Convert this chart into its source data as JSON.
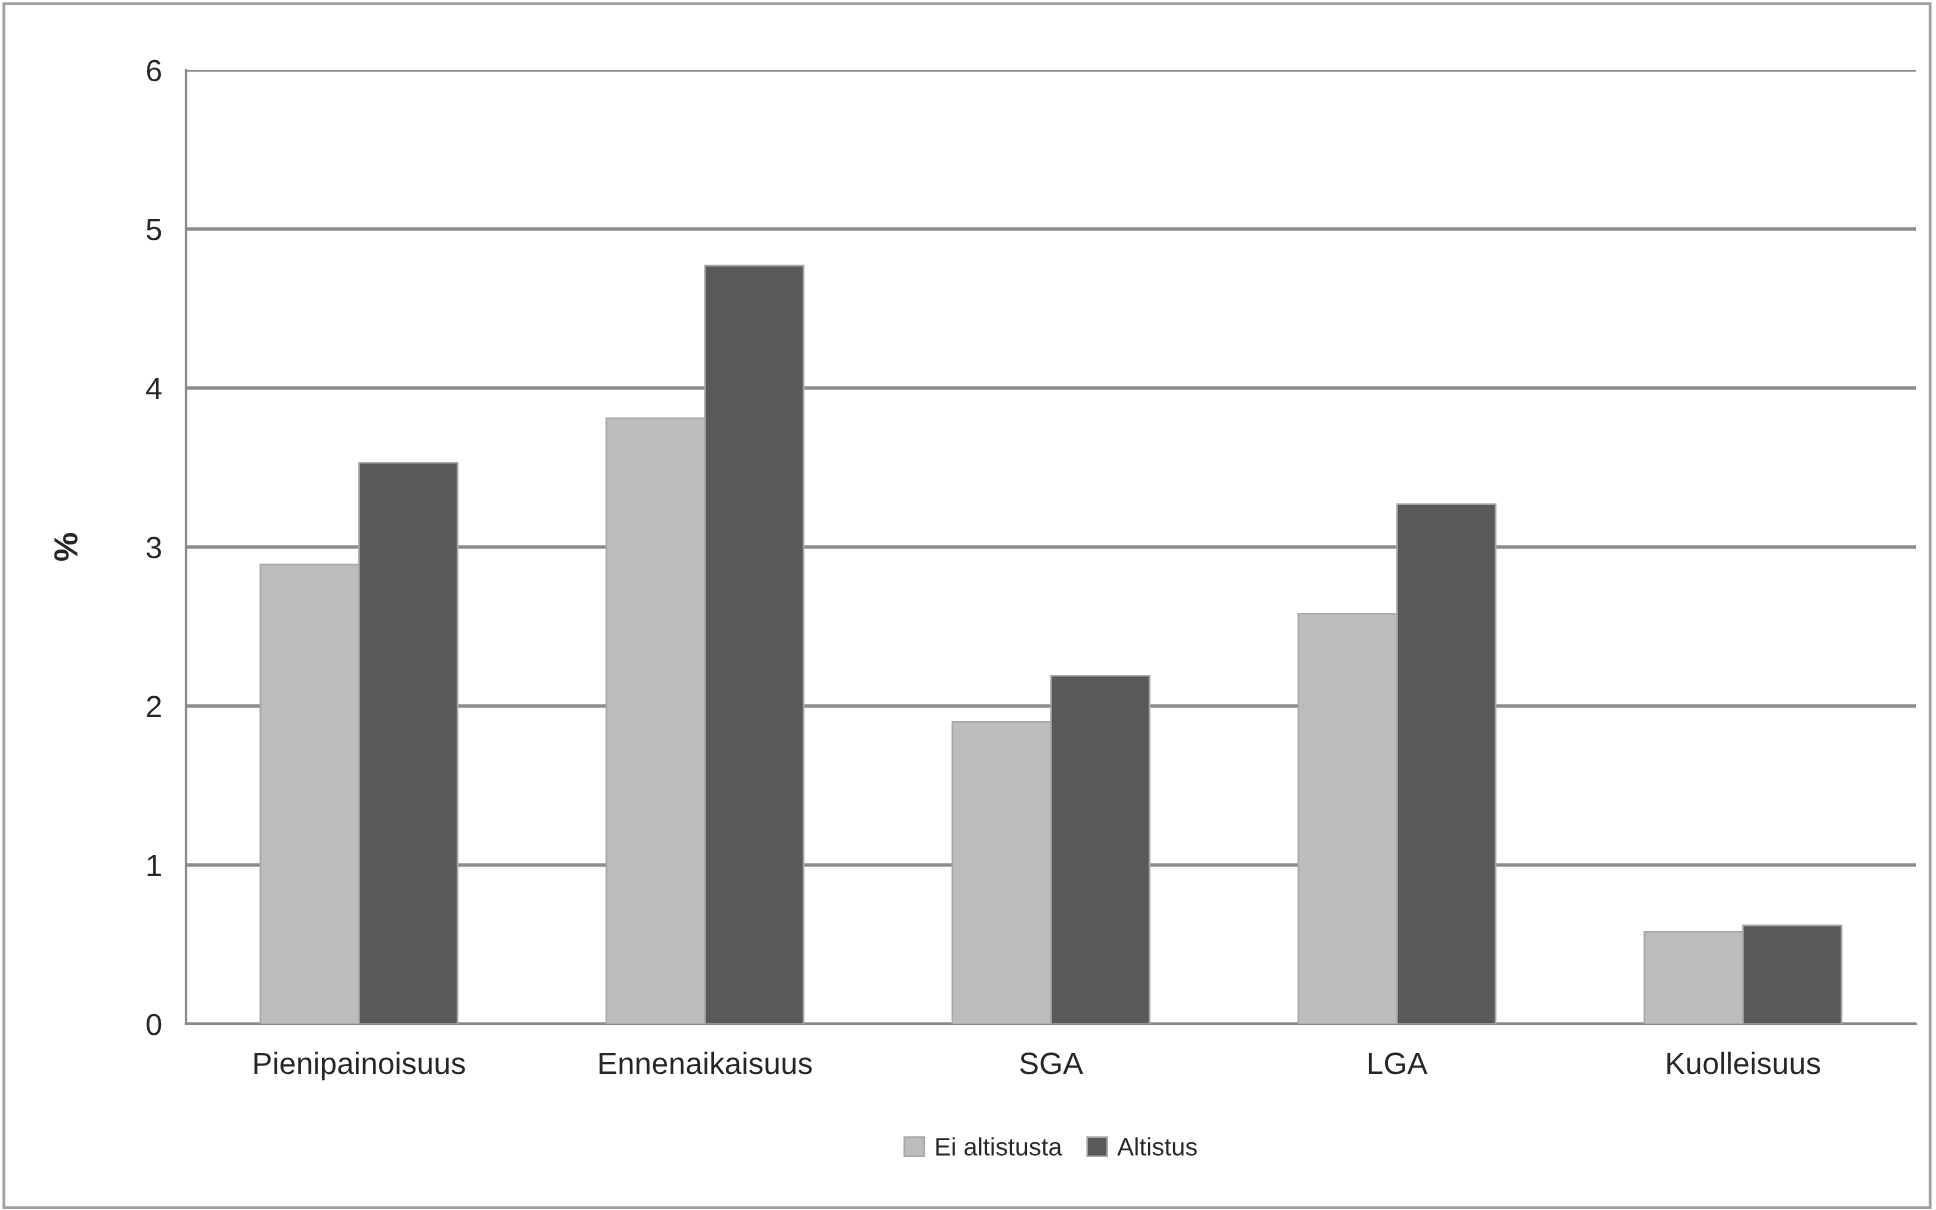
{
  "chart_data": {
    "type": "bar",
    "ylabel": "%",
    "categories": [
      "Pienipainoisuus",
      "Ennenaikaisuus",
      "SGA",
      "LGA",
      "Kuolleisuus"
    ],
    "series": [
      {
        "name": "Ei altistusta",
        "color": "#bcbcbc",
        "values": [
          2.89,
          3.81,
          1.9,
          2.58,
          0.58
        ]
      },
      {
        "name": "Altistus",
        "color": "#595959",
        "values": [
          3.53,
          4.77,
          2.19,
          3.27,
          0.62
        ]
      }
    ],
    "ylim": [
      0,
      6
    ],
    "yticks": [
      0,
      1,
      2,
      3,
      4,
      5,
      6
    ],
    "grid": "y",
    "legend": "bottom"
  }
}
